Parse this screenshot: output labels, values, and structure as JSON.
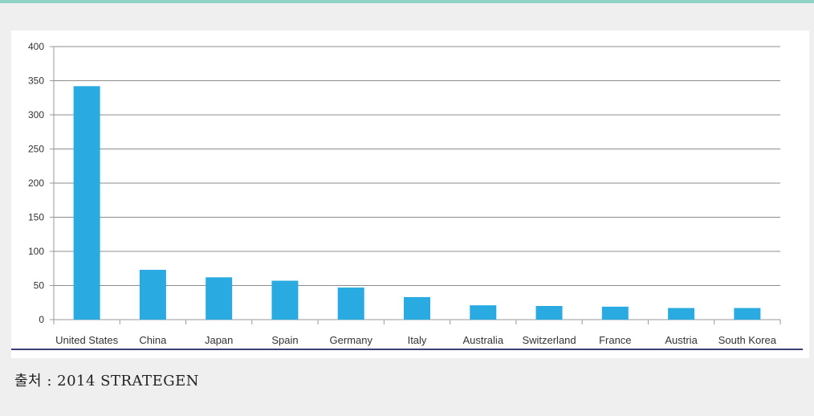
{
  "chart_data": {
    "type": "bar",
    "categories": [
      "United States",
      "China",
      "Japan",
      "Spain",
      "Germany",
      "Italy",
      "Australia",
      "Switzerland",
      "France",
      "Austria",
      "South Korea"
    ],
    "values": [
      342,
      73,
      62,
      57,
      47,
      33,
      21,
      20,
      19,
      17,
      17
    ],
    "title": "",
    "xlabel": "",
    "ylabel": "",
    "ylim": [
      0,
      400
    ],
    "yticks": [
      0,
      50,
      100,
      150,
      200,
      250,
      300,
      350,
      400
    ],
    "grid": true,
    "legend": "none",
    "bar_color": "#29abe2"
  },
  "source": {
    "text": "출처 : 2014 STRATEGEN"
  }
}
